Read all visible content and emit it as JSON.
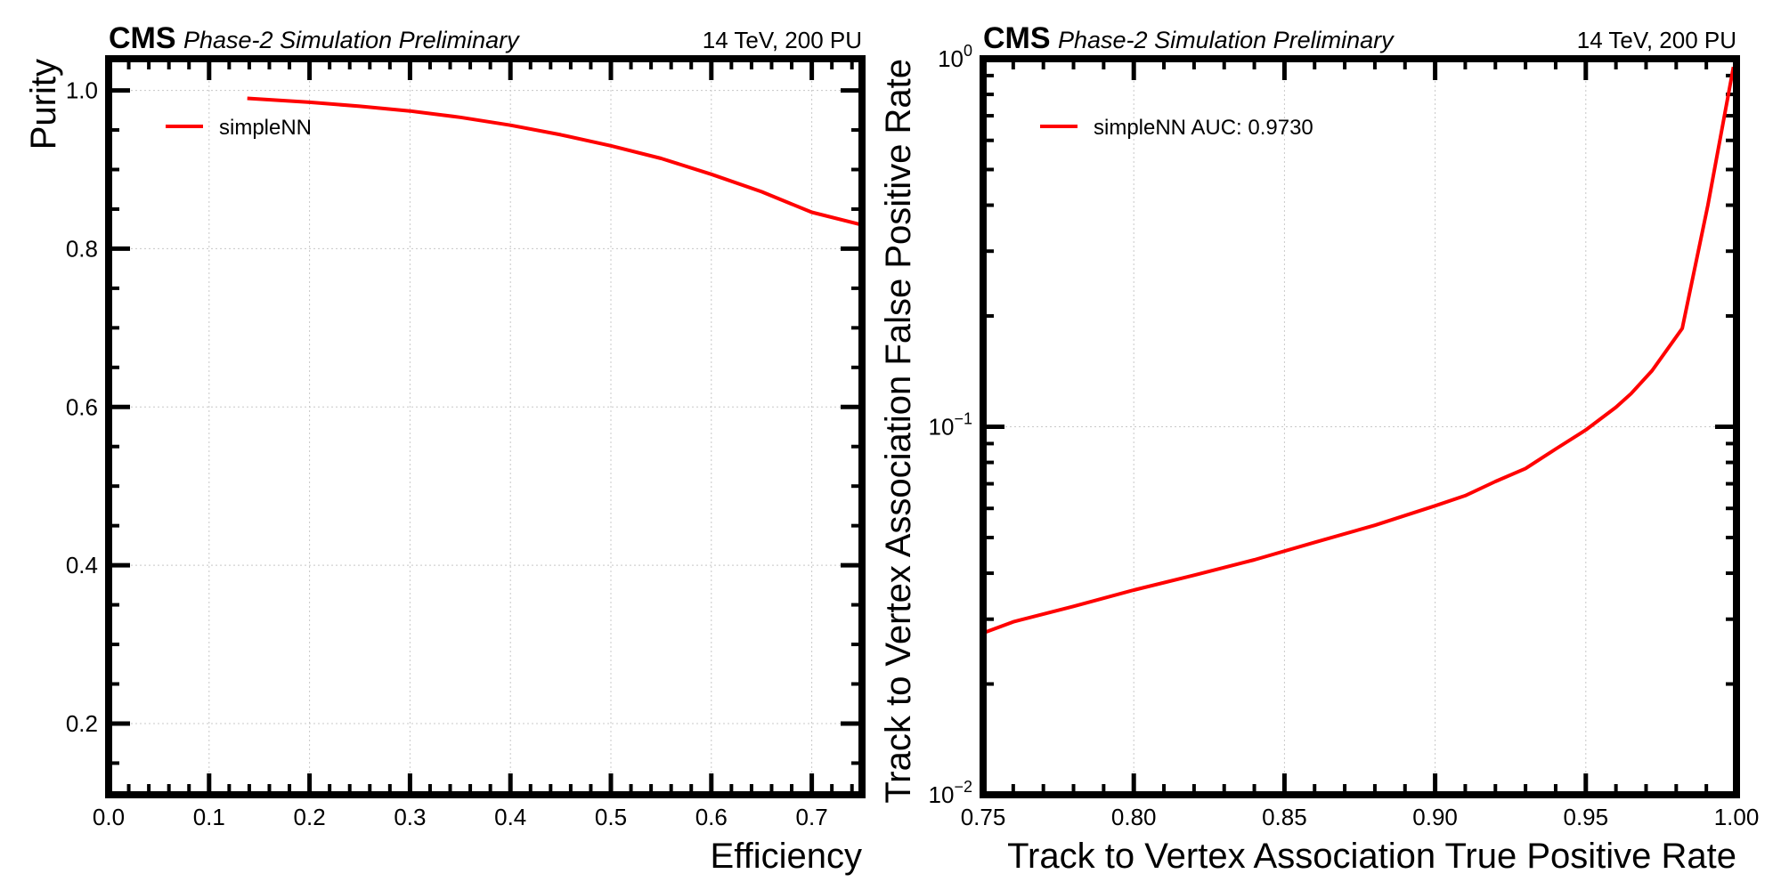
{
  "chart_data": [
    {
      "type": "line",
      "header": {
        "experiment": "CMS",
        "status": "Phase-2 Simulation Preliminary",
        "energy": "14 TeV, 200 PU"
      },
      "xlabel": "Efficiency",
      "ylabel": "Purity",
      "xlim": [
        0.0,
        0.75
      ],
      "ylim": [
        0.11,
        1.04
      ],
      "xscale": "linear",
      "yscale": "linear",
      "xticks": [
        0.0,
        0.1,
        0.2,
        0.3,
        0.4,
        0.5,
        0.6,
        0.7
      ],
      "xtick_labels": [
        "0.0",
        "0.1",
        "0.2",
        "0.3",
        "0.4",
        "0.5",
        "0.6",
        "0.7"
      ],
      "yticks": [
        0.2,
        0.4,
        0.6,
        0.8,
        1.0
      ],
      "ytick_labels": [
        "0.2",
        "0.4",
        "0.6",
        "0.8",
        "1.0"
      ],
      "grid": true,
      "legend_position": "top-left",
      "series": [
        {
          "name": "simpleNN",
          "color": "#ff0000",
          "x": [
            0.138,
            0.2,
            0.25,
            0.3,
            0.35,
            0.4,
            0.45,
            0.5,
            0.55,
            0.6,
            0.65,
            0.7,
            0.75
          ],
          "y": [
            0.99,
            0.985,
            0.98,
            0.974,
            0.966,
            0.956,
            0.944,
            0.93,
            0.914,
            0.894,
            0.872,
            0.846,
            0.83
          ]
        }
      ]
    },
    {
      "type": "line",
      "header": {
        "experiment": "CMS",
        "status": "Phase-2 Simulation Preliminary",
        "energy": "14 TeV, 200 PU"
      },
      "xlabel": "Track to Vertex Association True Positive Rate",
      "ylabel": "Track to Vertex Association False Positive Rate",
      "xlim": [
        0.75,
        1.0
      ],
      "ylim": [
        0.01,
        1.0
      ],
      "xscale": "linear",
      "yscale": "log",
      "xticks": [
        0.75,
        0.8,
        0.85,
        0.9,
        0.95,
        1.0
      ],
      "xtick_labels": [
        "0.75",
        "0.80",
        "0.85",
        "0.90",
        "0.95",
        "1.00"
      ],
      "yticks": [
        0.01,
        0.1,
        1.0
      ],
      "ytick_labels": [
        {
          "base": "10",
          "exp": "−2"
        },
        {
          "base": "10",
          "exp": "−1"
        },
        {
          "base": "10",
          "exp": "0"
        }
      ],
      "grid": true,
      "legend_position": "top-left",
      "series": [
        {
          "name": "simpleNN AUC: 0.9730",
          "color": "#ff0000",
          "x": [
            0.75,
            0.76,
            0.78,
            0.8,
            0.82,
            0.84,
            0.86,
            0.88,
            0.9,
            0.91,
            0.92,
            0.93,
            0.94,
            0.95,
            0.96,
            0.965,
            0.972,
            0.982,
            0.9905,
            0.999
          ],
          "y": [
            0.0275,
            0.0295,
            0.0325,
            0.036,
            0.0395,
            0.0435,
            0.0485,
            0.054,
            0.061,
            0.065,
            0.071,
            0.077,
            0.087,
            0.098,
            0.113,
            0.123,
            0.142,
            0.185,
            0.4,
            0.95
          ]
        }
      ]
    }
  ]
}
